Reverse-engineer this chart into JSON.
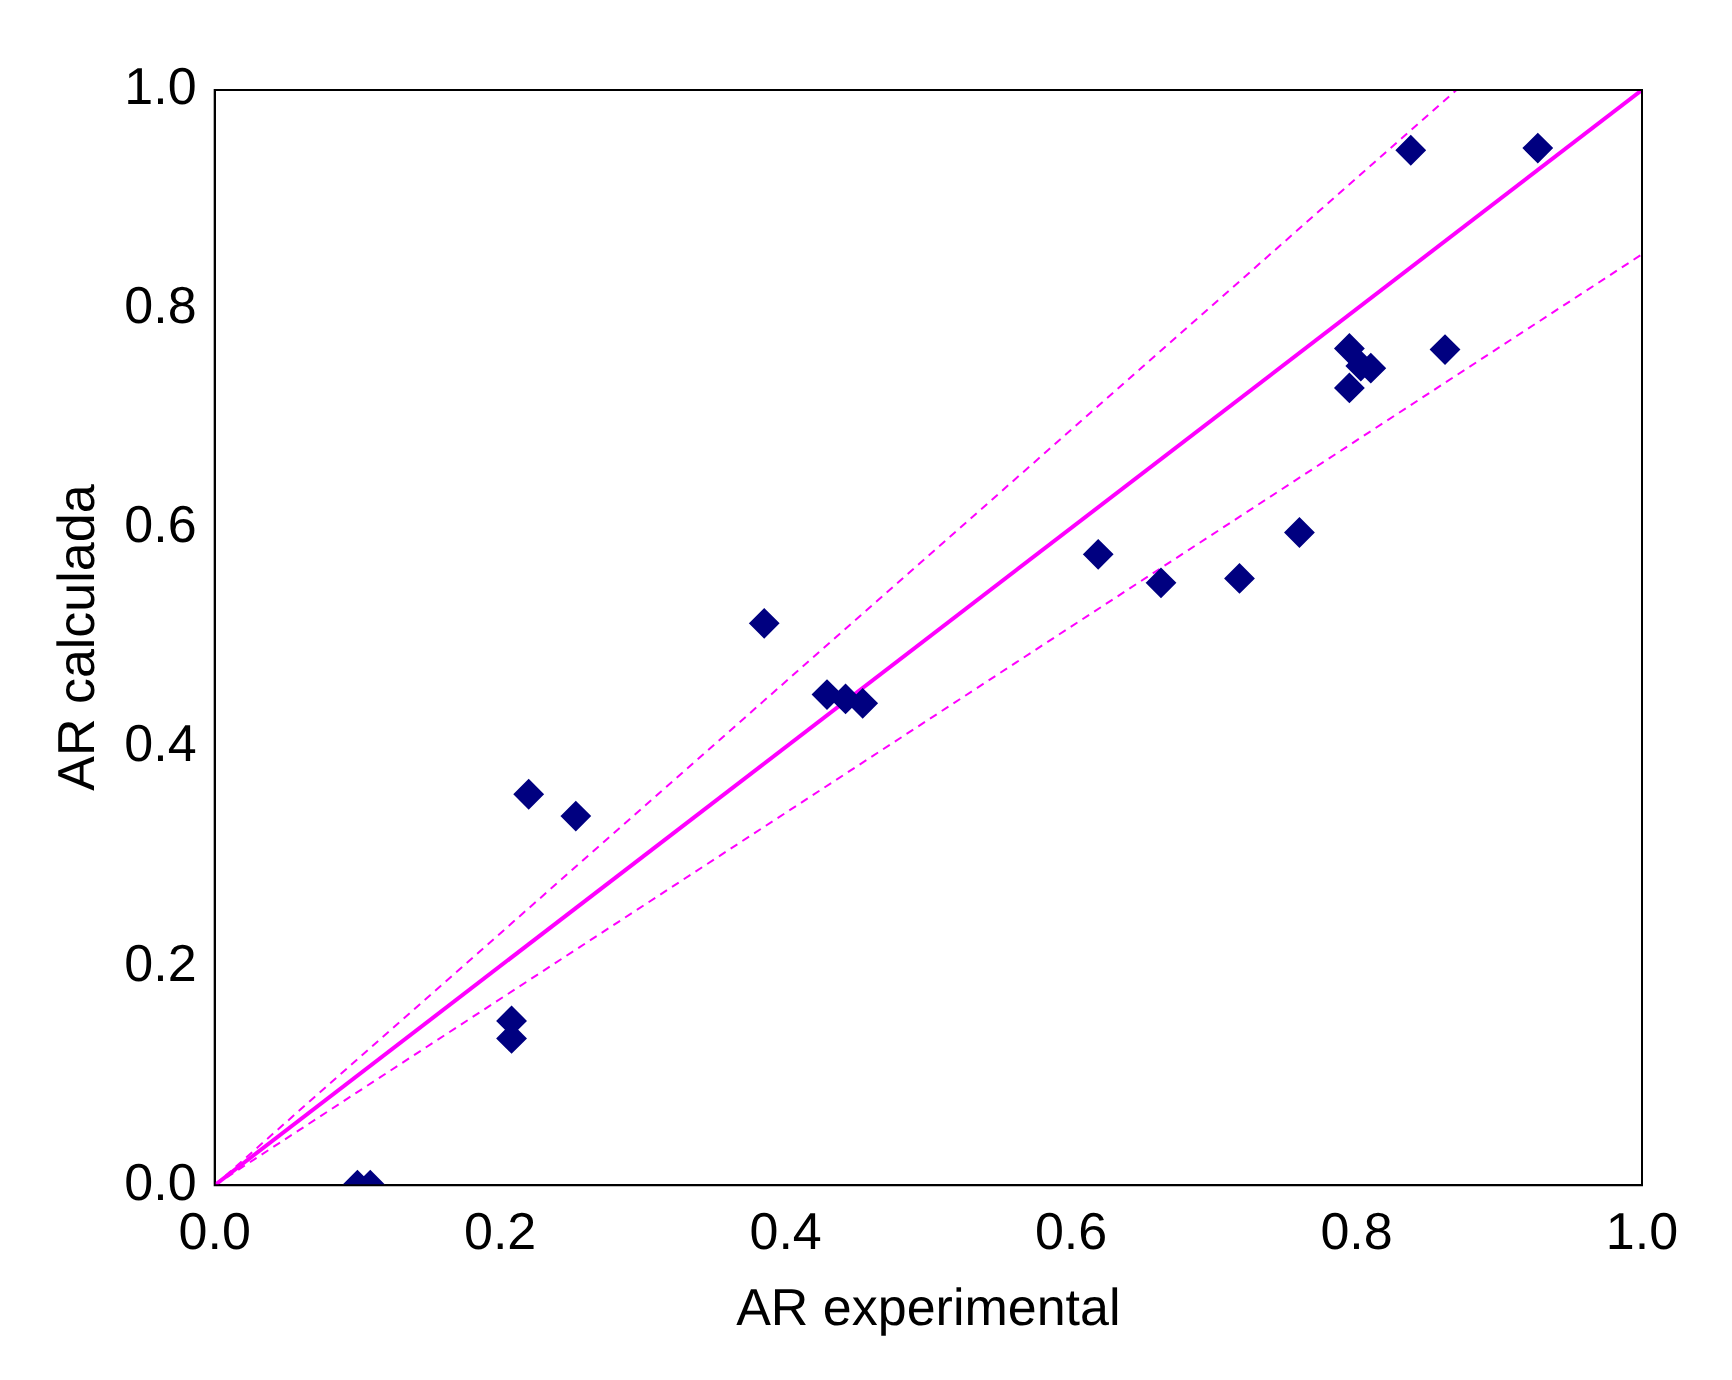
{
  "chart_data": {
    "type": "scatter",
    "xlabel": "AR experimental",
    "ylabel": "AR calculada",
    "grid": false,
    "legend": false,
    "xlim": [
      0,
      1
    ],
    "ylim": [
      0,
      1
    ],
    "xticks": [
      {
        "value": 0,
        "label": "0.0"
      },
      {
        "value": 0.2,
        "label": "0.2"
      },
      {
        "value": 0.4,
        "label": "0.4"
      },
      {
        "value": 0.6,
        "label": "0.6"
      },
      {
        "value": 0.8,
        "label": "0.8"
      },
      {
        "value": 1,
        "label": "1.0"
      }
    ],
    "yticks": [
      {
        "value": 0,
        "label": "0.0"
      },
      {
        "value": 0.2,
        "label": "0.2"
      },
      {
        "value": 0.4,
        "label": "0.4"
      },
      {
        "value": 0.6,
        "label": "0.6"
      },
      {
        "value": 0.8,
        "label": "0.8"
      },
      {
        "value": 1,
        "label": "1.0"
      }
    ],
    "series": [
      {
        "type": "scatter",
        "color": "#000080",
        "marker": "diamond",
        "x": [
          0.1,
          0.109,
          0.208,
          0.208,
          0.22,
          0.253,
          0.385,
          0.429,
          0.442,
          0.454,
          0.619,
          0.663,
          0.718,
          0.76,
          0.795,
          0.795,
          0.803,
          0.81,
          0.838,
          0.862,
          0.927
        ],
        "values": [
          0,
          0,
          0.15,
          0.134,
          0.357,
          0.337,
          0.513,
          0.448,
          0.444,
          0.44,
          0.576,
          0.55,
          0.554,
          0.596,
          0.764,
          0.728,
          0.748,
          0.746,
          0.945,
          0.763,
          0.947
        ]
      },
      {
        "type": "line",
        "color": "#ff00ff",
        "marker": "none",
        "line_style": "solid",
        "x": [
          0,
          1
        ],
        "values": [
          0,
          1
        ]
      },
      {
        "type": "line",
        "color": "#ff00ff",
        "marker": "none",
        "line_style": "dashed",
        "x": [
          0,
          0.87
        ],
        "values": [
          0,
          1
        ]
      },
      {
        "type": "line",
        "color": "#ff00ff",
        "marker": "none",
        "line_style": "dashed",
        "x": [
          0,
          1
        ],
        "values": [
          0,
          0.85
        ]
      }
    ]
  }
}
